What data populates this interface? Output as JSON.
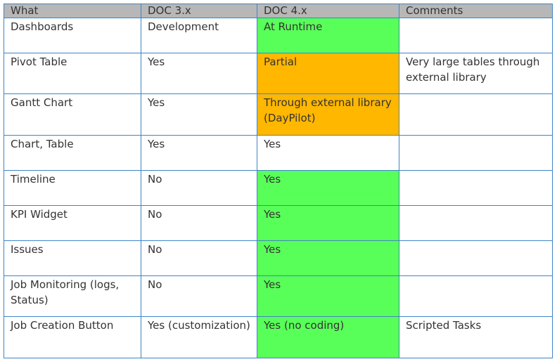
{
  "table": {
    "headers": [
      "What",
      "DOC 3.x",
      "DOC 4.x",
      "Comments"
    ],
    "rows": [
      {
        "what": "Dashboards",
        "doc3": "Development",
        "doc4": "At Runtime",
        "doc4_status": "green",
        "comments": ""
      },
      {
        "what": "Pivot Table",
        "doc3": "Yes",
        "doc4": "Partial",
        "doc4_status": "orange",
        "comments": "Very large tables through external library"
      },
      {
        "what": "Gantt Chart",
        "doc3": "Yes",
        "doc4": "Through external library (DayPilot)",
        "doc4_status": "orange",
        "comments": ""
      },
      {
        "what": "Chart, Table",
        "doc3": "Yes",
        "doc4": "Yes",
        "doc4_status": "white",
        "comments": ""
      },
      {
        "what": "Timeline",
        "doc3": "No",
        "doc4": "Yes",
        "doc4_status": "green",
        "comments": ""
      },
      {
        "what": "KPI Widget",
        "doc3": "No",
        "doc4": "Yes",
        "doc4_status": "green",
        "comments": ""
      },
      {
        "what": "Issues",
        "doc3": "No",
        "doc4": "Yes",
        "doc4_status": "green",
        "comments": ""
      },
      {
        "what": "Job Monitoring (logs, Status)",
        "doc3": "No",
        "doc4": "Yes",
        "doc4_status": "green",
        "comments": ""
      },
      {
        "what": "Job Creation Button",
        "doc3": "Yes (customization)",
        "doc4": "Yes (no coding)",
        "doc4_status": "green",
        "comments": "Scripted Tasks"
      }
    ]
  },
  "colors": {
    "header_bg": "#b7b7b7",
    "border": "#3d85c6",
    "green": "#59ff59",
    "orange": "#ffb700"
  }
}
